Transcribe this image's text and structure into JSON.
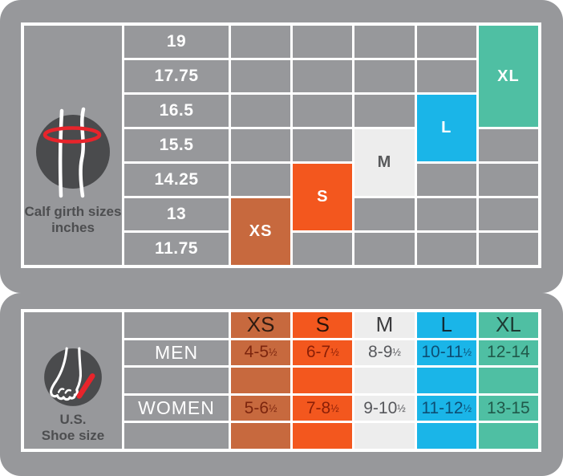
{
  "theme": {
    "panel_bg": "#97989B",
    "grid_line": "#FFFFFF",
    "icon_circle": "#4A4B4D",
    "caption_text": "#4D4E50",
    "accent_red": "#E8242B",
    "girth_text": "#FFFFFF"
  },
  "calf_panel": {
    "icon": "calf-girth-measure-icon",
    "caption_line1": "Calf girth sizes",
    "caption_line2": "inches",
    "girths": [
      "19",
      "17.75",
      "16.5",
      "15.5",
      "14.25",
      "13",
      "11.75"
    ],
    "blocks": [
      {
        "label": "XS",
        "style": {
          "background": "#C7693E",
          "color": "#FFFFFF"
        }
      },
      {
        "label": "S",
        "style": {
          "background": "#F3571E",
          "color": "#FFFFFF"
        }
      },
      {
        "label": "M",
        "style": {
          "background": "#EDEDED",
          "color": "#58595B"
        }
      },
      {
        "label": "L",
        "style": {
          "background": "#1AB5E8",
          "color": "#FFFFFF"
        }
      },
      {
        "label": "XL",
        "style": {
          "background": "#4FBFA3",
          "color": "#FFFFFF"
        }
      }
    ]
  },
  "shoe_panel": {
    "icon": "foot-measure-icon",
    "caption_line1": "U.S.",
    "caption_line2": "Shoe size",
    "row_labels": [
      "MEN",
      "WOMEN"
    ],
    "columns": [
      {
        "size": "XS",
        "men": "4-5½",
        "women": "5-6½",
        "cell_style": {
          "background": "#C7693E"
        },
        "header_style": {
          "background": "#C7693E",
          "color": "#2E1B11"
        },
        "value_style": {
          "background": "#C7693E",
          "color": "#7C250E"
        }
      },
      {
        "size": "S",
        "men": "6-7½",
        "women": "7-8½",
        "cell_style": {
          "background": "#F3571E"
        },
        "header_style": {
          "background": "#F3571E",
          "color": "#2B1309"
        },
        "value_style": {
          "background": "#F3571E",
          "color": "#8A1F07"
        }
      },
      {
        "size": "M",
        "men": "8-9½",
        "women": "9-10½",
        "cell_style": {
          "background": "#EDEDED"
        },
        "header_style": {
          "background": "#EDEDED",
          "color": "#3B3B3D"
        },
        "value_style": {
          "background": "#EDEDED",
          "color": "#57585C"
        }
      },
      {
        "size": "L",
        "men": "10-11½",
        "women": "11-12½",
        "cell_style": {
          "background": "#1AB5E8"
        },
        "header_style": {
          "background": "#1AB5E8",
          "color": "#132C35"
        },
        "value_style": {
          "background": "#1AB5E8",
          "color": "#0D4E74"
        }
      },
      {
        "size": "XL",
        "men": "12-14",
        "women": "13-15",
        "cell_style": {
          "background": "#4FBFA3"
        },
        "header_style": {
          "background": "#4FBFA3",
          "color": "#1D3B33"
        },
        "value_style": {
          "background": "#4FBFA3",
          "color": "#20594A"
        }
      }
    ]
  },
  "chart_data": [
    {
      "type": "table",
      "title": "Calf girth sizes inches",
      "row_labels": [
        "19",
        "17.75",
        "16.5",
        "15.5",
        "14.25",
        "13",
        "11.75"
      ],
      "columns": [
        "XS",
        "S",
        "M",
        "L",
        "XL"
      ],
      "size_to_girth_mapping": {
        "XS": [
          "13",
          "11.75"
        ],
        "S": [
          "14.25",
          "13"
        ],
        "M": [
          "15.5",
          "14.25"
        ],
        "L": [
          "16.5",
          "15.5"
        ],
        "XL": [
          "19",
          "17.75",
          "16.5"
        ]
      }
    },
    {
      "type": "table",
      "title": "U.S. Shoe size",
      "columns": [
        "XS",
        "S",
        "M",
        "L",
        "XL"
      ],
      "rows": [
        "MEN",
        "WOMEN"
      ],
      "values": {
        "MEN": [
          "4-5½",
          "6-7½",
          "8-9½",
          "10-11½",
          "12-14"
        ],
        "WOMEN": [
          "5-6½",
          "7-8½",
          "9-10½",
          "11-12½",
          "13-15"
        ]
      }
    }
  ]
}
